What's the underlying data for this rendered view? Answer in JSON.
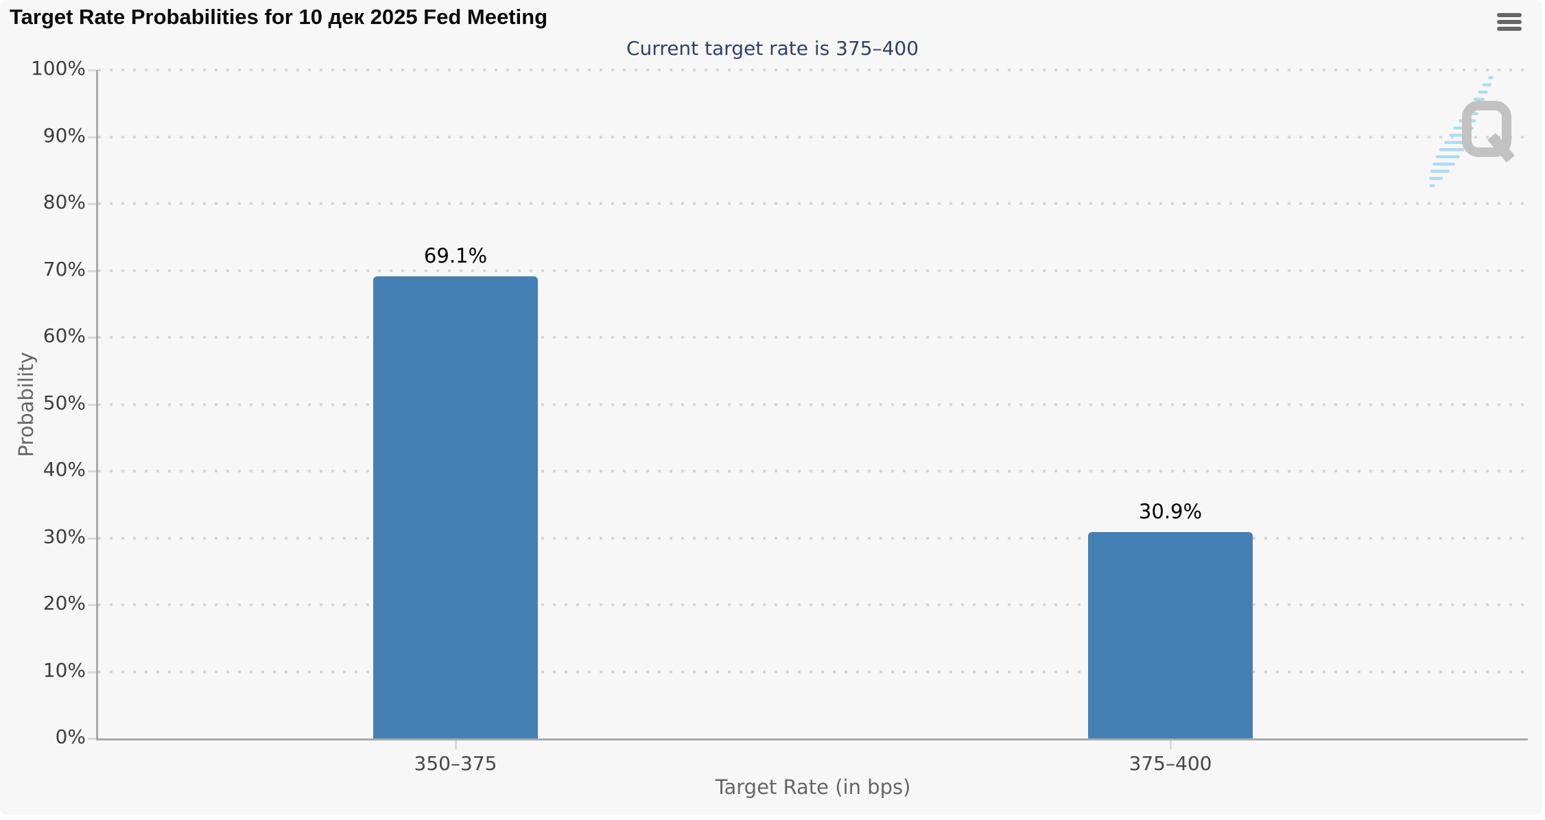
{
  "chart_data": {
    "type": "bar",
    "title": "Target Rate Probabilities for 10 дек 2025 Fed Meeting",
    "subtitle": "Current target rate is 375–400",
    "xlabel": "Target Rate (in bps)",
    "ylabel": "Probability",
    "categories": [
      "350–375",
      "375–400"
    ],
    "values": [
      69.1,
      30.9
    ],
    "value_labels": [
      "69.1%",
      "30.9%"
    ],
    "ylim": [
      0,
      100
    ],
    "ytick_step": 10,
    "ytick_labels": [
      "0%",
      "10%",
      "20%",
      "30%",
      "40%",
      "50%",
      "60%",
      "70%",
      "80%",
      "90%",
      "100%"
    ],
    "grid": "dotted horizontal, on",
    "legend": "none",
    "bar_color": "#4480b4"
  },
  "colors": {
    "bar": "#4480b4",
    "subtitle_text": "#324067",
    "chart_background": "#f7f7f7",
    "axis_line": "#a9a9a9"
  },
  "icons": {
    "context_menu": "hamburger-menu-icon",
    "watermark": "quikstrike-q-logo"
  }
}
